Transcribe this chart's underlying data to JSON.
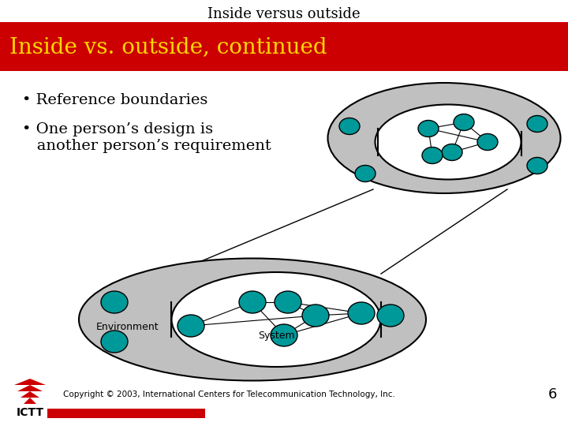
{
  "title_top": "Inside versus outside",
  "title_banner": "Inside vs. outside, continued",
  "title_banner_bg": "#cc0000",
  "title_banner_color": "#FFD700",
  "bullet1": "• Reference boundaries",
  "bullet2": "• One person’s design is\n   another person’s requirement",
  "bg_color": "#ffffff",
  "copyright": "Copyright © 2003, International Centers for Telecommunication Technology, Inc.",
  "page_num": "6",
  "node_color": "#009999",
  "ellipse_fill": "#c0c0c0",
  "white": "#ffffff",
  "black": "#000000",
  "red": "#cc0000"
}
